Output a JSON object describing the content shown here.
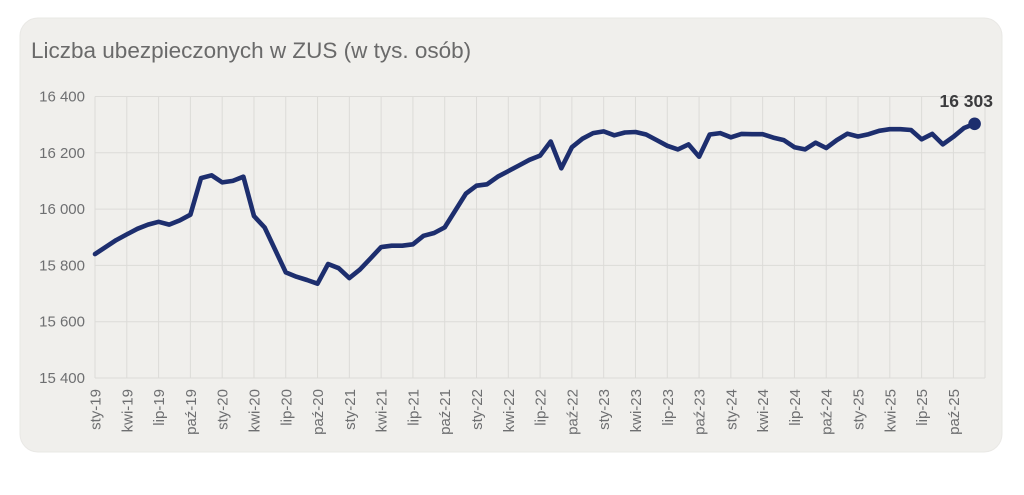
{
  "card": {
    "title": "Liczba ubezpieczonych w ZUS (w tys. osób)"
  },
  "colors": {
    "card_background": "#f0efec",
    "card_border": "#e9e8e5",
    "gridline": "#dcdbd8",
    "series_line": "#1d2e6e",
    "tick_text": "#6e6f71",
    "title_text": "#6a6a6a",
    "annotation_text": "#3b3b3d"
  },
  "chart_data": {
    "type": "line",
    "title": "Liczba ubezpieczonych w ZUS (w tys. osób)",
    "xlabel": "",
    "ylabel": "",
    "ylim": [
      15400,
      16400
    ],
    "grid": true,
    "legend_position": "none",
    "x_start_month": "sty-19",
    "x_end_month": "gru-25",
    "points_per_tick": 3,
    "x_tick_labels": [
      "sty-19",
      "kwi-19",
      "lip-19",
      "paź-19",
      "sty-20",
      "kwi-20",
      "lip-20",
      "paź-20",
      "sty-21",
      "kwi-21",
      "lip-21",
      "paź-21",
      "sty-22",
      "kwi-22",
      "lip-22",
      "paź-22",
      "sty-23",
      "kwi-23",
      "lip-23",
      "paź-23",
      "sty-24",
      "kwi-24",
      "lip-24",
      "paź-24",
      "sty-25",
      "kwi-25",
      "lip-25",
      "paź-25"
    ],
    "y_ticks": [
      16400,
      16200,
      16000,
      15800,
      15600,
      15400
    ],
    "y_tick_labels": [
      "16 400",
      "16 200",
      "16 000",
      "15 800",
      "15 600",
      "15 400"
    ],
    "series": [
      {
        "name": "Liczba ubezpieczonych (tys.)",
        "values": [
          15840,
          15865,
          15890,
          15910,
          15930,
          15945,
          15955,
          15945,
          15960,
          15980,
          16110,
          16120,
          16095,
          16100,
          16115,
          15975,
          15935,
          15855,
          15775,
          15760,
          15748,
          15735,
          15805,
          15790,
          15755,
          15785,
          15825,
          15865,
          15870,
          15870,
          15875,
          15905,
          15915,
          15935,
          15995,
          16055,
          16083,
          16088,
          16115,
          16135,
          16155,
          16175,
          16190,
          16240,
          16145,
          16220,
          16250,
          16270,
          16276,
          16262,
          16272,
          16274,
          16265,
          16245,
          16225,
          16212,
          16230,
          16186,
          16265,
          16270,
          16255,
          16267,
          16266,
          16266,
          16254,
          16245,
          16220,
          16212,
          16236,
          16217,
          16245,
          16268,
          16258,
          16266,
          16278,
          16284,
          16284,
          16281,
          16248,
          16267,
          16230,
          16257,
          16288,
          16303
        ]
      }
    ],
    "annotation": {
      "text": "16 303",
      "point": "last"
    }
  }
}
